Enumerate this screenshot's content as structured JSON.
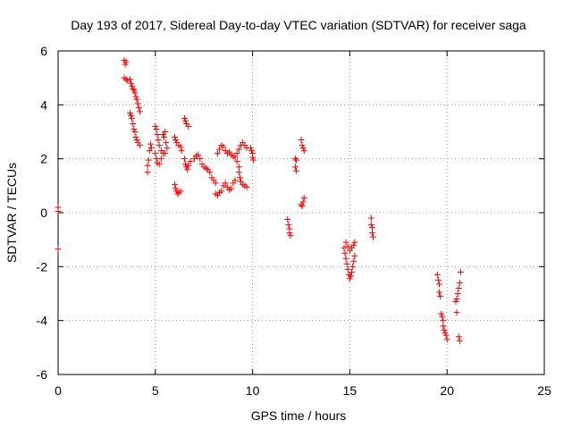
{
  "chart_data": {
    "type": "scatter",
    "title": "Day 193 of 2017, Sidereal Day-to-day VTEC variation (SDTVAR) for receiver saga",
    "xlabel": "GPS time / hours",
    "ylabel": "SDTVAR / TECUs",
    "xlim": [
      0,
      25
    ],
    "ylim": [
      -6,
      6
    ],
    "xticks": [
      0,
      5,
      10,
      15,
      20,
      25
    ],
    "yticks": [
      -6,
      -4,
      -2,
      0,
      2,
      4,
      6
    ],
    "grid": true,
    "marker": "+",
    "color": "#ff0000",
    "series": [
      {
        "name": "SDTVAR",
        "points": [
          [
            0.0,
            0.2
          ],
          [
            0.0,
            0.05
          ],
          [
            0.0,
            -1.35
          ],
          [
            3.4,
            5.65
          ],
          [
            3.45,
            5.5
          ],
          [
            3.5,
            5.6
          ],
          [
            3.4,
            5.0
          ],
          [
            3.5,
            4.95
          ],
          [
            3.55,
            4.9
          ],
          [
            3.7,
            4.95
          ],
          [
            3.75,
            4.8
          ],
          [
            3.8,
            4.7
          ],
          [
            3.85,
            4.6
          ],
          [
            3.9,
            4.55
          ],
          [
            3.95,
            4.45
          ],
          [
            4.0,
            4.3
          ],
          [
            4.05,
            4.2
          ],
          [
            4.1,
            4.05
          ],
          [
            4.15,
            3.9
          ],
          [
            4.2,
            3.75
          ],
          [
            3.7,
            3.7
          ],
          [
            3.75,
            3.6
          ],
          [
            3.8,
            3.5
          ],
          [
            3.85,
            3.3
          ],
          [
            3.9,
            3.1
          ],
          [
            3.95,
            3.0
          ],
          [
            4.0,
            2.8
          ],
          [
            4.05,
            2.7
          ],
          [
            4.1,
            2.6
          ],
          [
            4.2,
            2.5
          ],
          [
            4.6,
            1.5
          ],
          [
            4.6,
            1.75
          ],
          [
            4.65,
            1.95
          ],
          [
            4.7,
            2.3
          ],
          [
            4.75,
            2.55
          ],
          [
            4.8,
            2.4
          ],
          [
            5.0,
            3.2
          ],
          [
            5.05,
            3.1
          ],
          [
            5.1,
            2.9
          ],
          [
            5.15,
            2.7
          ],
          [
            5.2,
            2.5
          ],
          [
            5.3,
            2.3
          ],
          [
            5.0,
            2.2
          ],
          [
            5.05,
            2.0
          ],
          [
            5.1,
            1.85
          ],
          [
            5.2,
            1.8
          ],
          [
            5.3,
            2.0
          ],
          [
            5.4,
            2.2
          ],
          [
            5.4,
            2.9
          ],
          [
            5.45,
            2.8
          ],
          [
            5.5,
            3.0
          ],
          [
            5.55,
            2.6
          ],
          [
            5.6,
            2.4
          ],
          [
            5.5,
            2.2
          ],
          [
            6.0,
            1.05
          ],
          [
            6.05,
            0.9
          ],
          [
            6.1,
            0.8
          ],
          [
            6.15,
            0.7
          ],
          [
            6.2,
            0.75
          ],
          [
            6.3,
            0.8
          ],
          [
            6.0,
            2.8
          ],
          [
            6.05,
            2.7
          ],
          [
            6.1,
            2.6
          ],
          [
            6.2,
            2.5
          ],
          [
            6.3,
            2.45
          ],
          [
            6.35,
            2.3
          ],
          [
            6.5,
            2.0
          ],
          [
            6.55,
            1.8
          ],
          [
            6.6,
            1.7
          ],
          [
            6.65,
            1.6
          ],
          [
            6.7,
            1.75
          ],
          [
            6.8,
            1.9
          ],
          [
            6.5,
            3.5
          ],
          [
            6.55,
            3.4
          ],
          [
            6.6,
            3.3
          ],
          [
            6.7,
            3.2
          ],
          [
            7.0,
            2.0
          ],
          [
            7.1,
            2.1
          ],
          [
            7.2,
            2.15
          ],
          [
            7.3,
            2.0
          ],
          [
            7.4,
            1.8
          ],
          [
            7.5,
            1.7
          ],
          [
            7.6,
            1.65
          ],
          [
            7.7,
            1.6
          ],
          [
            7.8,
            1.5
          ],
          [
            7.9,
            1.3
          ],
          [
            8.0,
            1.2
          ],
          [
            8.1,
            1.1
          ],
          [
            8.1,
            0.7
          ],
          [
            8.2,
            0.65
          ],
          [
            8.3,
            0.75
          ],
          [
            8.4,
            0.8
          ],
          [
            8.5,
            1.0
          ],
          [
            8.6,
            1.1
          ],
          [
            8.7,
            0.95
          ],
          [
            8.8,
            0.85
          ],
          [
            8.9,
            0.9
          ],
          [
            9.0,
            1.1
          ],
          [
            9.1,
            1.2
          ],
          [
            8.2,
            2.2
          ],
          [
            8.3,
            2.35
          ],
          [
            8.4,
            2.5
          ],
          [
            8.5,
            2.45
          ],
          [
            8.6,
            2.3
          ],
          [
            8.7,
            2.2
          ],
          [
            8.8,
            2.25
          ],
          [
            8.9,
            2.15
          ],
          [
            9.0,
            2.1
          ],
          [
            9.1,
            2.05
          ],
          [
            9.2,
            1.9
          ],
          [
            9.3,
            1.7
          ],
          [
            9.2,
            2.2
          ],
          [
            9.3,
            2.35
          ],
          [
            9.4,
            2.5
          ],
          [
            9.5,
            2.6
          ],
          [
            9.6,
            2.5
          ],
          [
            9.7,
            2.4
          ],
          [
            9.3,
            1.5
          ],
          [
            9.35,
            1.3
          ],
          [
            9.4,
            1.15
          ],
          [
            9.5,
            1.05
          ],
          [
            9.6,
            1.0
          ],
          [
            9.7,
            0.95
          ],
          [
            9.9,
            2.4
          ],
          [
            9.95,
            2.3
          ],
          [
            10.0,
            2.2
          ],
          [
            10.0,
            2.05
          ],
          [
            10.05,
            1.95
          ],
          [
            11.8,
            -0.25
          ],
          [
            11.85,
            -0.45
          ],
          [
            11.9,
            -0.6
          ],
          [
            11.9,
            -0.75
          ],
          [
            11.95,
            -0.85
          ],
          [
            12.2,
            2.0
          ],
          [
            12.25,
            1.95
          ],
          [
            12.2,
            1.7
          ],
          [
            12.25,
            1.55
          ],
          [
            12.5,
            2.7
          ],
          [
            12.55,
            2.5
          ],
          [
            12.6,
            2.4
          ],
          [
            12.65,
            2.3
          ],
          [
            12.5,
            0.3
          ],
          [
            12.55,
            0.25
          ],
          [
            12.6,
            0.4
          ],
          [
            12.65,
            0.55
          ],
          [
            14.7,
            -1.3
          ],
          [
            14.75,
            -1.5
          ],
          [
            14.8,
            -1.7
          ],
          [
            14.85,
            -1.9
          ],
          [
            14.9,
            -2.1
          ],
          [
            14.95,
            -2.3
          ],
          [
            15.0,
            -2.45
          ],
          [
            15.05,
            -2.35
          ],
          [
            15.1,
            -2.2
          ],
          [
            15.15,
            -2.0
          ],
          [
            15.2,
            -1.8
          ],
          [
            15.25,
            -1.6
          ],
          [
            14.8,
            -1.1
          ],
          [
            14.9,
            -1.25
          ],
          [
            15.0,
            -1.4
          ],
          [
            15.1,
            -1.3
          ],
          [
            15.2,
            -1.2
          ],
          [
            15.25,
            -1.1
          ],
          [
            16.1,
            -0.2
          ],
          [
            16.1,
            -0.45
          ],
          [
            16.15,
            -0.55
          ],
          [
            16.15,
            -0.75
          ],
          [
            16.2,
            -0.9
          ],
          [
            19.5,
            -2.3
          ],
          [
            19.55,
            -2.5
          ],
          [
            19.6,
            -2.65
          ],
          [
            19.6,
            -2.95
          ],
          [
            19.65,
            -3.1
          ],
          [
            19.7,
            -3.75
          ],
          [
            19.75,
            -3.85
          ],
          [
            19.8,
            -4.0
          ],
          [
            19.8,
            -4.2
          ],
          [
            19.85,
            -4.35
          ],
          [
            19.9,
            -4.45
          ],
          [
            19.95,
            -4.55
          ],
          [
            20.0,
            -4.7
          ],
          [
            20.45,
            -3.3
          ],
          [
            20.5,
            -3.2
          ],
          [
            20.55,
            -3.0
          ],
          [
            20.6,
            -2.8
          ],
          [
            20.65,
            -2.6
          ],
          [
            20.7,
            -2.2
          ],
          [
            20.6,
            -4.6
          ],
          [
            20.65,
            -4.75
          ],
          [
            20.5,
            -3.7
          ]
        ]
      }
    ]
  }
}
